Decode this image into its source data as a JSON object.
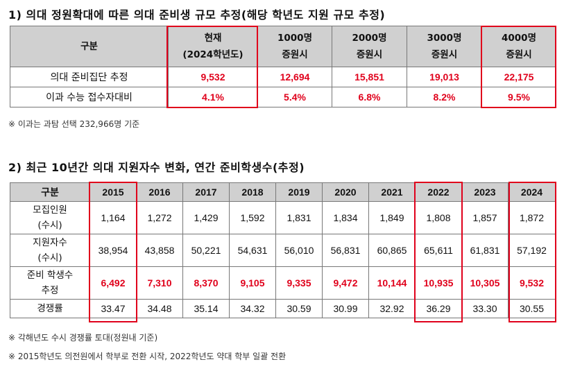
{
  "section1": {
    "title": "1) 의대 정원확대에 따른 의대 준비생 규모 추정(해당 학년도 지원 규모 추정)",
    "header_label": "구분",
    "columns": [
      {
        "line1": "현재",
        "line2": "(2024학년도)"
      },
      {
        "line1": "1000명",
        "line2": "증원시"
      },
      {
        "line1": "2000명",
        "line2": "증원시"
      },
      {
        "line1": "3000명",
        "line2": "증원시"
      },
      {
        "line1": "4000명",
        "line2": "증원시"
      }
    ],
    "rows": [
      {
        "label": "의대 준비집단 추정",
        "values": [
          "9,532",
          "12,694",
          "15,851",
          "19,013",
          "22,175"
        ]
      },
      {
        "label": "이과 수능 접수자대비",
        "values": [
          "4.1%",
          "5.4%",
          "6.8%",
          "8.2%",
          "9.5%"
        ]
      }
    ],
    "note": "※ 이과는 과탐 선택 232,966명 기준"
  },
  "section2": {
    "title": "2) 최근 10년간 의대 지원자수 변화, 연간 준비학생수(추정)",
    "header_label": "구분",
    "years": [
      "2015",
      "2016",
      "2017",
      "2018",
      "2019",
      "2020",
      "2021",
      "2022",
      "2023",
      "2024"
    ],
    "rows": [
      {
        "label1": "모집인원",
        "label2": "(수시)",
        "values": [
          "1,164",
          "1,272",
          "1,429",
          "1,592",
          "1,831",
          "1,834",
          "1,849",
          "1,808",
          "1,857",
          "1,872"
        ]
      },
      {
        "label1": "지원자수",
        "label2": "(수시)",
        "values": [
          "38,954",
          "43,858",
          "50,221",
          "54,631",
          "56,010",
          "56,831",
          "60,865",
          "65,611",
          "61,831",
          "57,192"
        ]
      },
      {
        "label1": "준비 학생수",
        "label2": "추정",
        "values": [
          "6,492",
          "7,310",
          "8,370",
          "9,105",
          "9,335",
          "9,472",
          "10,144",
          "10,935",
          "10,305",
          "9,532"
        ]
      },
      {
        "label1": "경쟁률",
        "label2": "",
        "values": [
          "33.47",
          "34.48",
          "35.14",
          "34.32",
          "30.59",
          "30.99",
          "32.92",
          "36.29",
          "33.30",
          "30.55"
        ]
      }
    ],
    "notes": [
      "※ 각해년도 수시 경쟁률 토대(정원내 기준)",
      "※ 2015학년도 의전원에서 학부로 전환 시작, 2022학년도 약대 학부 일괄 전환"
    ]
  },
  "colors": {
    "highlight": "#e0001b",
    "header_bg": "#d0d0d0",
    "border": "#777777"
  }
}
